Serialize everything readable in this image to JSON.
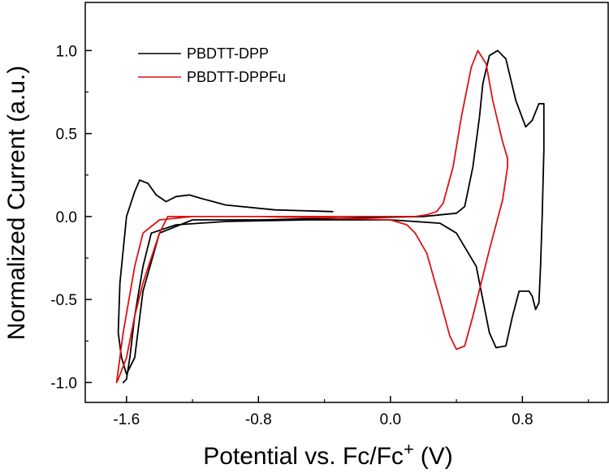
{
  "chart_data": {
    "type": "line",
    "title": "",
    "xlabel": "Potential vs. Fc/Fc",
    "xlabel_superscript": "+",
    "xlabel_unit": "(V)",
    "ylabel": "Normalized Current (a.u.)",
    "xlim": [
      -1.85,
      1.32
    ],
    "ylim": [
      -1.12,
      1.29
    ],
    "x_ticks": [
      -1.6,
      -0.8,
      0.0,
      0.8
    ],
    "x_tick_labels": [
      "-1.6",
      "-0.8",
      "0.0",
      "0.8"
    ],
    "y_ticks": [
      -1.0,
      -0.5,
      0.0,
      0.5,
      1.0
    ],
    "y_tick_labels": [
      "-1.0",
      "-0.5",
      "0.0",
      "0.5",
      "1.0"
    ],
    "grid": false,
    "legend_position": "top-left",
    "series": [
      {
        "name": "PBDTT-DPP",
        "color": "#000000",
        "x": [
          -0.35,
          -0.7,
          -1.0,
          -1.15,
          -1.22,
          -1.3,
          -1.36,
          -1.42,
          -1.47,
          -1.52,
          -1.55,
          -1.6,
          -1.64,
          -1.65,
          -1.63,
          -1.6,
          -1.55,
          -1.5,
          -1.4,
          -1.2,
          -0.8,
          -0.3,
          0.2,
          0.3,
          0.4,
          0.45,
          0.5,
          0.54,
          0.56,
          0.6,
          0.65,
          0.7,
          0.76,
          0.82,
          0.86,
          0.9,
          0.93,
          0.93,
          0.92,
          0.91,
          0.9,
          0.88,
          0.86,
          0.84,
          0.78,
          0.74,
          0.7,
          0.64,
          0.6,
          0.56,
          0.52,
          0.4,
          0.3,
          0.0,
          -0.5,
          -1.0,
          -1.3,
          -1.45,
          -1.5,
          -1.55,
          -1.58,
          -1.6,
          -1.62
        ],
        "y": [
          0.03,
          0.04,
          0.07,
          0.11,
          0.13,
          0.12,
          0.09,
          0.13,
          0.2,
          0.22,
          0.15,
          0.0,
          -0.4,
          -0.7,
          -0.85,
          -0.95,
          -0.85,
          -0.45,
          -0.1,
          -0.02,
          -0.02,
          -0.01,
          0.0,
          0.01,
          0.02,
          0.06,
          0.3,
          0.6,
          0.8,
          0.97,
          1.0,
          0.95,
          0.7,
          0.54,
          0.58,
          0.68,
          0.68,
          0.4,
          0.0,
          -0.3,
          -0.52,
          -0.56,
          -0.48,
          -0.45,
          -0.45,
          -0.6,
          -0.78,
          -0.79,
          -0.7,
          -0.5,
          -0.3,
          -0.1,
          -0.04,
          -0.02,
          -0.02,
          -0.03,
          -0.05,
          -0.1,
          -0.3,
          -0.6,
          -0.85,
          -0.98,
          -1.0
        ]
      },
      {
        "name": "PBDTT-DPPFu",
        "color": "#dd1111",
        "x": [
          -0.9,
          -0.5,
          0.0,
          0.15,
          0.22,
          0.28,
          0.32,
          0.38,
          0.43,
          0.49,
          0.53,
          0.58,
          0.62,
          0.68,
          0.71,
          0.71,
          0.68,
          0.6,
          0.5,
          0.45,
          0.4,
          0.36,
          0.3,
          0.22,
          0.15,
          0.1,
          0.0,
          -0.3,
          -0.8,
          -1.2,
          -1.4,
          -1.5,
          -1.55,
          -1.62,
          -1.66,
          -1.65,
          -1.6,
          -1.55,
          -1.5,
          -1.4,
          -1.35,
          -1.2,
          -0.9
        ],
        "y": [
          0.0,
          0.0,
          0.0,
          0.0,
          0.01,
          0.03,
          0.08,
          0.3,
          0.6,
          0.9,
          1.0,
          0.92,
          0.7,
          0.45,
          0.35,
          0.3,
          0.1,
          -0.2,
          -0.6,
          -0.78,
          -0.8,
          -0.72,
          -0.5,
          -0.22,
          -0.1,
          -0.05,
          -0.02,
          -0.01,
          0.0,
          0.0,
          -0.02,
          -0.1,
          -0.3,
          -0.7,
          -1.0,
          -0.98,
          -0.85,
          -0.6,
          -0.4,
          -0.1,
          0.0,
          0.0,
          0.0
        ]
      }
    ]
  }
}
